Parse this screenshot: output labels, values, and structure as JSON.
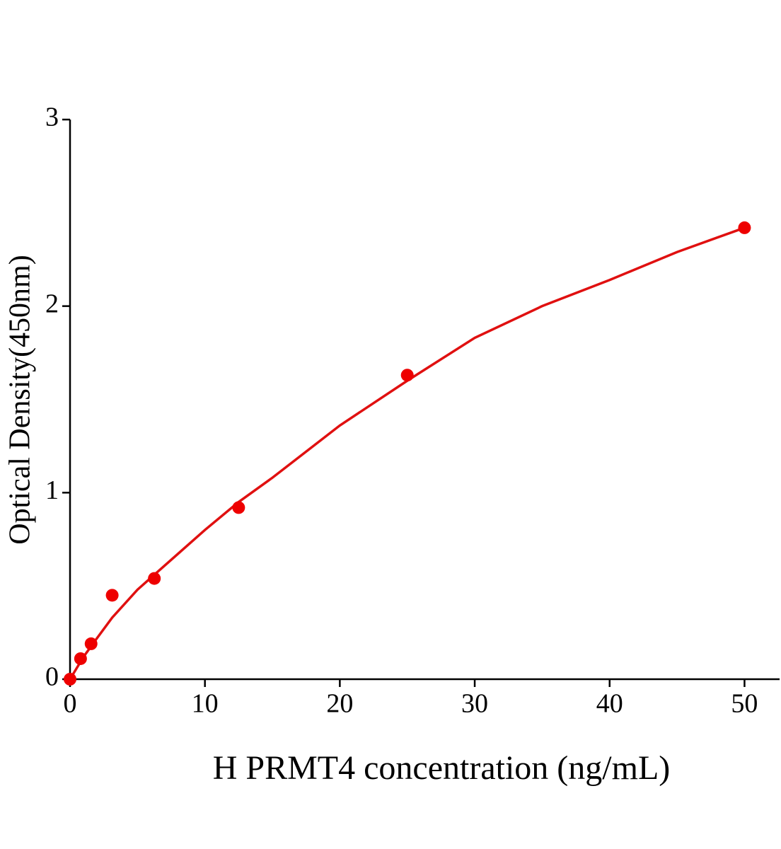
{
  "chart_data": {
    "type": "scatter",
    "x_label": "H PRMT4 concentration (ng/mL)",
    "y_label": "Optical Density(450nm)",
    "x": [
      0,
      0.78,
      1.56,
      3.125,
      6.25,
      12.5,
      25,
      50
    ],
    "values": [
      0,
      0.11,
      0.19,
      0.45,
      0.54,
      0.92,
      1.63,
      2.42
    ],
    "color": "#ee0000",
    "fit": {
      "x": [
        0,
        1,
        2,
        3.125,
        5,
        6.25,
        10,
        12.5,
        15,
        20,
        25,
        30,
        35,
        40,
        45,
        50
      ],
      "values": [
        0,
        0.12,
        0.22,
        0.33,
        0.48,
        0.56,
        0.8,
        0.95,
        1.08,
        1.36,
        1.6,
        1.83,
        2.0,
        2.14,
        2.29,
        2.42
      ],
      "color": "#e01010"
    },
    "xlim": [
      0,
      52.6
    ],
    "ylim": [
      0,
      3
    ],
    "xticks": [
      0,
      10,
      20,
      30,
      40,
      50
    ],
    "yticks": [
      0,
      1,
      2,
      3
    ]
  }
}
